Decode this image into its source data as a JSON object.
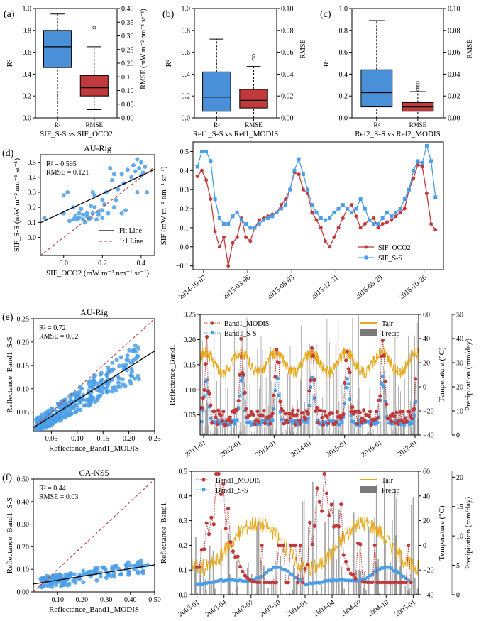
{
  "colors": {
    "blue": "#4a90d9",
    "red": "#c0393b",
    "scatter": "#4a9ee8",
    "ss_line": "#4a9ee8",
    "tair": "#e6a817",
    "precip": "#7a7a7a",
    "black": "#000000",
    "temp_axis": "#d4a017",
    "precip_axis": "#7f7f7f"
  },
  "chart_data": [
    {
      "id": "a",
      "type": "box",
      "panel_label": "(a)",
      "categories": [
        "R²",
        "RMSE"
      ],
      "xlabel": "SIF_S-S vs SIF_OCO2",
      "left_axis": {
        "label": "R²",
        "range": [
          0,
          1.0
        ],
        "ticks": [
          "0.0",
          "0.2",
          "0.4",
          "0.6",
          "0.8",
          "1.0"
        ]
      },
      "right_axis": {
        "label": "RMSE (mW m⁻² nm⁻¹ sr⁻¹)",
        "range": [
          0,
          0.4
        ],
        "ticks": [
          "0.00",
          "0.05",
          "0.10",
          "0.15",
          "0.20",
          "0.25",
          "0.30",
          "0.35",
          "0.40"
        ]
      },
      "boxes": [
        {
          "category": "R²",
          "axis": "left",
          "whisker_low": 0.0,
          "q1": 0.46,
          "median": 0.65,
          "q3": 0.8,
          "whisker_high": 0.95,
          "outliers": []
        },
        {
          "category": "RMSE",
          "axis": "right",
          "whisker_low": 0.03,
          "q1": 0.08,
          "median": 0.11,
          "q3": 0.155,
          "whisker_high": 0.26,
          "outliers": [
            0.33
          ]
        }
      ]
    },
    {
      "id": "b",
      "type": "box",
      "panel_label": "(b)",
      "categories": [
        "R²",
        "RMSE"
      ],
      "xlabel": "Ref1_S-S vs Ref1_MODIS",
      "left_axis": {
        "label": "R²",
        "range": [
          0,
          1.0
        ],
        "ticks": [
          "0.0",
          "0.2",
          "0.4",
          "0.6",
          "0.8",
          "1.0"
        ]
      },
      "right_axis": {
        "label": "RMSE",
        "range": [
          0,
          0.1
        ],
        "ticks": [
          "0.00",
          "0.02",
          "0.04",
          "0.06",
          "0.08",
          "0.10"
        ]
      },
      "boxes": [
        {
          "category": "R²",
          "axis": "left",
          "whisker_low": 0.0,
          "q1": 0.06,
          "median": 0.19,
          "q3": 0.42,
          "whisker_high": 0.72,
          "outliers": []
        },
        {
          "category": "RMSE",
          "axis": "right",
          "whisker_low": 0.0,
          "q1": 0.009,
          "median": 0.016,
          "q3": 0.026,
          "whisker_high": 0.047,
          "outliers": [
            0.054,
            0.057
          ]
        }
      ]
    },
    {
      "id": "c",
      "type": "box",
      "panel_label": "(c)",
      "categories": [
        "R²",
        "RMSE"
      ],
      "xlabel": "Ref2_S-S vs Ref2_MODIS",
      "left_axis": {
        "label": "R²",
        "range": [
          0,
          1.0
        ],
        "ticks": [
          "0.0",
          "0.2",
          "0.4",
          "0.6",
          "0.8",
          "1.0"
        ]
      },
      "right_axis": {
        "label": "RMSE",
        "range": [
          0,
          0.1
        ],
        "ticks": [
          "0.00",
          "0.02",
          "0.04",
          "0.06",
          "0.08",
          "0.10"
        ]
      },
      "boxes": [
        {
          "category": "R²",
          "axis": "left",
          "whisker_low": 0.0,
          "q1": 0.1,
          "median": 0.23,
          "q3": 0.44,
          "whisker_high": 0.89,
          "outliers": []
        },
        {
          "category": "RMSE",
          "axis": "right",
          "whisker_low": 0.0,
          "q1": 0.006,
          "median": 0.01,
          "q3": 0.014,
          "whisker_high": 0.024,
          "outliers": [
            0.026,
            0.028,
            0.03,
            0.032
          ]
        }
      ]
    },
    {
      "id": "d_scatter",
      "type": "scatter",
      "panel_label": "(d)",
      "title": "AU-Rig",
      "xlabel": "SIF_OCO2 (mW m⁻² nm⁻¹ sr⁻¹)",
      "ylabel": "SIF_S-S (mW m⁻² nm⁻¹ sr⁻¹)",
      "xlim": [
        -0.12,
        0.47
      ],
      "ylim": [
        -0.12,
        0.55
      ],
      "xticks": [
        0.0,
        0.2,
        0.4
      ],
      "xtick_labels": [
        "0.0",
        "0.2",
        "0.4"
      ],
      "yticks": [
        0.0,
        0.1,
        0.2,
        0.3,
        0.4,
        0.5
      ],
      "ytick_labels": [
        "0.0",
        "0.1",
        "0.2",
        "0.3",
        "0.4",
        "0.5"
      ],
      "annotations": [
        "R² = 0.595",
        "RMSE = 0.121"
      ],
      "fit_line": {
        "slope": 0.6,
        "intercept": 0.17
      },
      "one_to_one": true,
      "legend": {
        "position": "lower-right",
        "entries": [
          "Fit Line",
          "1:1 Line"
        ]
      },
      "points": [
        [
          -0.1,
          0.13
        ],
        [
          0.0,
          0.28
        ],
        [
          0.0,
          0.16
        ],
        [
          0.02,
          0.3
        ],
        [
          0.05,
          0.12
        ],
        [
          0.06,
          0.14
        ],
        [
          0.08,
          0.13
        ],
        [
          0.08,
          0.16
        ],
        [
          0.1,
          0.12
        ],
        [
          0.1,
          0.15
        ],
        [
          0.12,
          0.16
        ],
        [
          0.12,
          0.14
        ],
        [
          0.13,
          0.12
        ],
        [
          0.14,
          0.13
        ],
        [
          0.15,
          0.3
        ],
        [
          0.15,
          0.16
        ],
        [
          0.16,
          0.2
        ],
        [
          0.17,
          0.12
        ],
        [
          0.18,
          0.15
        ],
        [
          0.2,
          0.25
        ],
        [
          0.2,
          0.18
        ],
        [
          0.21,
          0.22
        ],
        [
          0.22,
          0.3
        ],
        [
          0.23,
          0.16
        ],
        [
          0.25,
          0.38
        ],
        [
          0.26,
          0.2
        ],
        [
          0.28,
          0.32
        ],
        [
          0.3,
          0.42
        ],
        [
          0.3,
          0.16
        ],
        [
          0.31,
          0.36
        ],
        [
          0.32,
          0.18
        ],
        [
          0.33,
          0.45
        ],
        [
          0.35,
          0.4
        ],
        [
          0.36,
          0.48
        ],
        [
          0.37,
          0.44
        ],
        [
          0.38,
          0.52
        ],
        [
          0.38,
          0.3
        ],
        [
          0.39,
          0.46
        ],
        [
          0.4,
          0.5
        ],
        [
          0.4,
          0.41
        ],
        [
          0.41,
          0.43
        ],
        [
          0.42,
          0.47
        ],
        [
          0.43,
          0.3
        ],
        [
          0.26,
          0.42
        ],
        [
          0.24,
          0.46
        ],
        [
          0.05,
          0.2
        ],
        [
          0.09,
          0.19
        ],
        [
          0.14,
          0.21
        ],
        [
          0.18,
          0.17
        ],
        [
          0.11,
          0.1
        ],
        [
          0.07,
          0.12
        ],
        [
          0.03,
          0.11
        ],
        [
          0.16,
          0.28
        ],
        [
          0.27,
          0.25
        ],
        [
          0.2,
          0.13
        ]
      ]
    },
    {
      "id": "d_ts",
      "type": "line",
      "ylabel": "SIF (mW m⁻² nm⁻¹ sr⁻¹)",
      "ylim": [
        -0.12,
        0.55
      ],
      "yticks": [
        -0.1,
        0.0,
        0.1,
        0.2,
        0.3,
        0.4,
        0.5
      ],
      "ytick_labels": [
        "−0.1",
        "0.0",
        "0.1",
        "0.2",
        "0.3",
        "0.4",
        "0.5"
      ],
      "x_dates": [
        "2014-09-01",
        "2016-12-31"
      ],
      "xtick_labels": [
        "2014-10-07",
        "2015-03-06",
        "2015-08-03",
        "2015-12-31",
        "2016-05-29",
        "2016-10-26"
      ],
      "legend": {
        "position": "lower-right",
        "entries": [
          "SIF_OCO2",
          "SIF_S-S"
        ]
      },
      "series": [
        {
          "name": "SIF_OCO2",
          "color": "red",
          "marker": "circle",
          "x": [
            "2014-09-16",
            "2014-10-01",
            "2014-10-16",
            "2014-10-31",
            "2014-11-15",
            "2014-11-30",
            "2014-12-15",
            "2014-12-30",
            "2015-01-14",
            "2015-01-29",
            "2015-02-13",
            "2015-02-28",
            "2015-03-15",
            "2015-03-30",
            "2015-04-14",
            "2015-04-29",
            "2015-05-14",
            "2015-05-29",
            "2015-06-13",
            "2015-06-28",
            "2015-07-13",
            "2015-07-28",
            "2015-08-12",
            "2015-08-27",
            "2015-09-11",
            "2015-09-26",
            "2015-10-11",
            "2015-10-26",
            "2015-11-10",
            "2015-11-25",
            "2015-12-10",
            "2015-12-25",
            "2016-01-09",
            "2016-01-24",
            "2016-02-08",
            "2016-02-23",
            "2016-03-09",
            "2016-03-24",
            "2016-04-08",
            "2016-04-23",
            "2016-05-08",
            "2016-05-23",
            "2016-06-07",
            "2016-06-22",
            "2016-07-07",
            "2016-07-22",
            "2016-08-06",
            "2016-08-21",
            "2016-09-05",
            "2016-09-20",
            "2016-10-05",
            "2016-10-20",
            "2016-11-04",
            "2016-11-19",
            "2016-12-04"
          ],
          "values": [
            0.37,
            0.4,
            0.35,
            0.25,
            0.08,
            0.0,
            0.05,
            -0.1,
            0.02,
            0.05,
            0.15,
            0.05,
            0.03,
            0.1,
            0.14,
            0.15,
            0.16,
            0.17,
            0.18,
            0.22,
            0.25,
            0.3,
            0.39,
            0.38,
            0.3,
            0.28,
            0.18,
            0.14,
            0.1,
            0.03,
            0.0,
            0.05,
            0.1,
            0.15,
            0.2,
            0.22,
            0.16,
            0.1,
            0.12,
            0.14,
            0.15,
            0.1,
            0.12,
            0.13,
            0.14,
            0.16,
            0.18,
            0.2,
            0.3,
            0.36,
            0.43,
            0.42,
            0.28,
            0.12,
            0.09
          ]
        },
        {
          "name": "SIF_S-S",
          "color": "ss_line",
          "marker": "square",
          "x": [
            "2014-09-16",
            "2014-10-01",
            "2014-10-16",
            "2014-10-31",
            "2014-11-15",
            "2014-11-30",
            "2014-12-15",
            "2014-12-30",
            "2015-01-14",
            "2015-01-29",
            "2015-02-13",
            "2015-02-28",
            "2015-03-15",
            "2015-03-30",
            "2015-04-14",
            "2015-04-29",
            "2015-05-14",
            "2015-05-29",
            "2015-06-13",
            "2015-06-28",
            "2015-07-13",
            "2015-07-28",
            "2015-08-12",
            "2015-08-27",
            "2015-09-11",
            "2015-09-26",
            "2015-10-11",
            "2015-10-26",
            "2015-11-10",
            "2015-11-25",
            "2015-12-10",
            "2015-12-25",
            "2016-01-09",
            "2016-01-24",
            "2016-02-08",
            "2016-02-23",
            "2016-03-09",
            "2016-03-24",
            "2016-04-08",
            "2016-04-23",
            "2016-05-08",
            "2016-05-23",
            "2016-06-07",
            "2016-06-22",
            "2016-07-07",
            "2016-07-22",
            "2016-08-06",
            "2016-08-21",
            "2016-09-05",
            "2016-09-20",
            "2016-10-05",
            "2016-10-20",
            "2016-11-04",
            "2016-11-19",
            "2016-12-04"
          ],
          "values": [
            0.42,
            0.5,
            0.5,
            0.45,
            0.25,
            0.15,
            0.12,
            0.12,
            0.16,
            0.18,
            0.14,
            0.12,
            0.1,
            0.1,
            0.12,
            0.14,
            0.15,
            0.16,
            0.18,
            0.2,
            0.22,
            0.3,
            0.4,
            0.46,
            0.38,
            0.3,
            0.22,
            0.18,
            0.15,
            0.14,
            0.15,
            0.18,
            0.2,
            0.22,
            0.2,
            0.18,
            0.2,
            0.25,
            0.2,
            0.14,
            0.12,
            0.12,
            0.15,
            0.18,
            0.16,
            0.18,
            0.2,
            0.25,
            0.3,
            0.4,
            0.45,
            0.44,
            0.53,
            0.45,
            0.26
          ]
        }
      ]
    },
    {
      "id": "e_scatter",
      "type": "scatter",
      "panel_label": "(e)",
      "title": "AU-Rig",
      "xlabel": "Reflectance_Band1_MODIS",
      "ylabel": "Reflectance_Band1_S-S",
      "xlim": [
        0.015,
        0.25
      ],
      "ylim": [
        0.01,
        0.25
      ],
      "xticks": [
        0.05,
        0.1,
        0.15,
        0.2,
        0.25
      ],
      "xtick_labels": [
        "0.05",
        "0.10",
        "0.15",
        "0.20",
        "0.25"
      ],
      "yticks": [
        0.05,
        0.1,
        0.15,
        0.2,
        0.25
      ],
      "ytick_labels": [
        "0.05",
        "0.10",
        "0.15",
        "0.20",
        "0.25"
      ],
      "annotations": [
        "R² = 0.72",
        "RMSE = 0.02"
      ],
      "fit_line": {
        "slope": 0.7,
        "intercept": 0.006
      },
      "one_to_one": true,
      "n_points": 320,
      "seed": 7
    },
    {
      "id": "e_ts",
      "type": "line_bar",
      "ylabel": "Reflectance_Band1",
      "ylim": [
        0.01,
        0.25
      ],
      "yticks": [
        0.05,
        0.1,
        0.15,
        0.2,
        0.25
      ],
      "ytick_labels": [
        "0.05",
        "0.10",
        "0.15",
        "0.20",
        "0.25"
      ],
      "temp_axis": {
        "label": "Temperature (°C)",
        "range": [
          -40,
          60
        ],
        "ticks": [
          "−40",
          "−20",
          "0",
          "20",
          "40",
          "60"
        ]
      },
      "precip_axis": {
        "label": "Precipitation (mm/day)",
        "range": [
          0,
          50
        ],
        "ticks": [
          "0",
          "10",
          "20",
          "30",
          "40",
          "50"
        ]
      },
      "x_years": [
        2010.9,
        2017.1
      ],
      "xtick_labels": [
        "2011-01",
        "2012-01",
        "2013-01",
        "2014-01",
        "2015-01",
        "2016-01",
        "2017-01"
      ],
      "legend_left": [
        "Band1_MODIS",
        "Band1_S-S"
      ],
      "legend_right": [
        "Tair",
        "Precip"
      ],
      "season_peak_fraction": 0.1,
      "series_desc": "Band1 reflectance ~0.05 with summer peaks 0.10–0.22; S-S smoother",
      "seed": 11
    },
    {
      "id": "f_scatter",
      "type": "scatter",
      "panel_label": "(f)",
      "title": "CA-NS5",
      "xlabel": "Reflectance_Band1_MODIS",
      "ylabel": "Reflectance_Band1_S-S",
      "xlim": [
        0.0,
        0.5
      ],
      "ylim": [
        0.0,
        0.5
      ],
      "xticks": [
        0.1,
        0.2,
        0.3,
        0.4,
        0.5
      ],
      "xtick_labels": [
        "0.10",
        "0.20",
        "0.30",
        "0.40",
        "0.50"
      ],
      "yticks": [
        0.0,
        0.1,
        0.2,
        0.3,
        0.4,
        0.5
      ],
      "ytick_labels": [
        "0.00",
        "0.10",
        "0.20",
        "0.30",
        "0.40",
        "0.50"
      ],
      "annotations": [
        "R² = 0.44",
        "RMSE = 0.03"
      ],
      "fit_line": {
        "slope": 0.17,
        "intercept": 0.035
      },
      "one_to_one": true,
      "n_points": 150,
      "seed": 23
    },
    {
      "id": "f_ts",
      "type": "line_bar",
      "ylabel": "Reflectance_Band1",
      "ylim": [
        0.0,
        0.5
      ],
      "yticks": [
        0.0,
        0.1,
        0.2,
        0.3,
        0.4,
        0.5
      ],
      "ytick_labels": [
        "0.0",
        "0.1",
        "0.2",
        "0.3",
        "0.4",
        "0.5"
      ],
      "temp_axis": {
        "label": "Temperature (°C)",
        "range": [
          -40,
          60
        ],
        "ticks": [
          "−40",
          "−20",
          "0",
          "20",
          "40",
          "60"
        ]
      },
      "precip_axis": {
        "label": "Precipitation (mm/day)",
        "range": [
          0,
          21
        ],
        "ticks": [
          "0",
          "5",
          "10",
          "15",
          "20"
        ]
      },
      "x_years": [
        2002.95,
        2005.05
      ],
      "xtick_labels": [
        "2003-01",
        "2003-04",
        "2003-07",
        "2003-10",
        "2004-01",
        "2004-04",
        "2004-07",
        "2004-10",
        "2005-01"
      ],
      "legend_left": [
        "Band1_MODIS",
        "Band1_S-S"
      ],
      "legend_right": [
        "Tair",
        "Precip"
      ],
      "seed": 31
    }
  ]
}
